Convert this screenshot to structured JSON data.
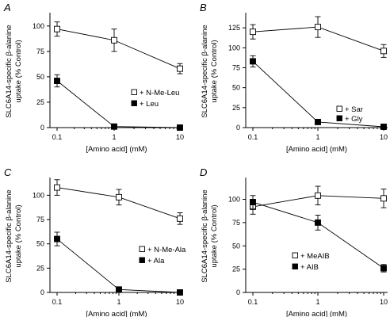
{
  "chart_data": [
    {
      "type": "line",
      "panel": "A",
      "xlabel": "[Amino acid] (mM)",
      "ylabel": [
        "SLC6A14-specific β-alanine",
        "uptake (% Control)"
      ],
      "xscale": "log",
      "x": [
        0.1,
        1,
        10
      ],
      "xticks": [
        "0.1",
        "1",
        "10"
      ],
      "ylim": [
        0,
        110
      ],
      "yticks": [
        0,
        25,
        50,
        75,
        100
      ],
      "legend_position": "center-right",
      "series": [
        {
          "name": "+ N-Me-Leu",
          "marker": "open-square",
          "values": [
            97,
            86,
            58
          ],
          "errors": [
            7,
            11,
            5
          ]
        },
        {
          "name": "+ Leu",
          "marker": "filled-square",
          "values": [
            46,
            1,
            0
          ],
          "errors": [
            6,
            1,
            1
          ]
        }
      ]
    },
    {
      "type": "line",
      "panel": "B",
      "xlabel": "[Amino acid] (mM)",
      "ylabel": [
        "SLC6A14-specific β-alanine",
        "uptake (% Control)"
      ],
      "xscale": "log",
      "x": [
        0.1,
        1,
        10
      ],
      "xticks": [
        "0.1",
        "1",
        "10"
      ],
      "ylim": [
        0,
        140
      ],
      "yticks": [
        0,
        25,
        50,
        75,
        100,
        125
      ],
      "legend_position": "center-right",
      "series": [
        {
          "name": "+ Sar",
          "marker": "open-square",
          "values": [
            120,
            126,
            96
          ],
          "errors": [
            9,
            13,
            8
          ]
        },
        {
          "name": "+ Gly",
          "marker": "filled-square",
          "values": [
            83,
            7,
            1
          ],
          "errors": [
            7,
            1,
            1
          ]
        }
      ]
    },
    {
      "type": "line",
      "panel": "C",
      "xlabel": "[Amino acid] (mM)",
      "ylabel": [
        "SLC6A14-specific β-alanine",
        "uptake (% Control)"
      ],
      "xscale": "log",
      "x": [
        0.1,
        1,
        10
      ],
      "xticks": [
        "0.1",
        "1",
        "10"
      ],
      "ylim": [
        0,
        115
      ],
      "yticks": [
        0,
        25,
        50,
        75,
        100
      ],
      "legend_position": "center-right",
      "series": [
        {
          "name": "+ N-Me-Ala",
          "marker": "open-square",
          "values": [
            108,
            98,
            76
          ],
          "errors": [
            8,
            8,
            6
          ]
        },
        {
          "name": "+ Ala",
          "marker": "filled-square",
          "values": [
            55,
            3,
            0
          ],
          "errors": [
            7,
            1,
            1
          ]
        }
      ]
    },
    {
      "type": "line",
      "panel": "D",
      "xlabel": "[Amino acid] (mM)",
      "ylabel": [
        "SLC6A14-specific β-alanine",
        "uptake (% Control)"
      ],
      "xscale": "log",
      "x": [
        0.1,
        1,
        10
      ],
      "xticks": [
        "0.1",
        "1",
        "10"
      ],
      "ylim": [
        0,
        120
      ],
      "yticks": [
        0,
        25,
        50,
        75,
        100
      ],
      "legend_position": "center-right",
      "series": [
        {
          "name": "+ MeAIB",
          "marker": "open-square",
          "values": [
            92,
            104,
            101
          ],
          "errors": [
            8,
            10,
            10
          ]
        },
        {
          "name": "+ AIB",
          "marker": "filled-square",
          "values": [
            97,
            75,
            26
          ],
          "errors": [
            7,
            8,
            4
          ]
        }
      ]
    }
  ]
}
